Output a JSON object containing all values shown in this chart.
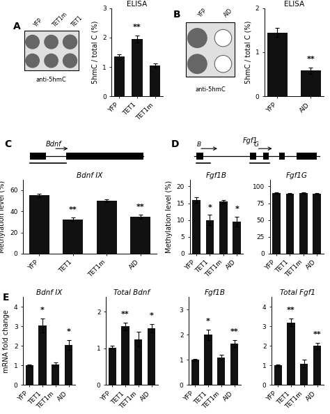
{
  "panel_A": {
    "bars": {
      "YFP": 1.35,
      "TET1": 1.95,
      "TET1m": 1.05
    },
    "errors": {
      "YFP": 0.08,
      "TET1": 0.12,
      "TET1m": 0.07
    },
    "sig": {
      "TET1": "**"
    },
    "ylabel": "5hmC / total C (%)",
    "ylim": [
      0,
      3
    ],
    "yticks": [
      0,
      1,
      2,
      3
    ],
    "title": "ELISA"
  },
  "panel_B": {
    "bars": {
      "YFP": 1.45,
      "AID": 0.58
    },
    "errors": {
      "YFP": 0.1,
      "AID": 0.07
    },
    "sig": {
      "AID": "**"
    },
    "ylabel": "5hmC / total C (%)",
    "ylim": [
      0,
      2
    ],
    "yticks": [
      0,
      1,
      2
    ],
    "title": "ELISA"
  },
  "panel_C": {
    "bars": {
      "YFP": 55,
      "TET1": 32,
      "TET1m": 50,
      "AID": 35
    },
    "errors": {
      "YFP": 1.5,
      "TET1": 2,
      "TET1m": 1.5,
      "AID": 2
    },
    "sig": {
      "TET1": "**",
      "AID": "**"
    },
    "ylabel": "Methylation level (%)",
    "ylim": [
      0,
      70
    ],
    "yticks": [
      0,
      20,
      40,
      60
    ],
    "title": "Bdnf IX"
  },
  "panel_D1": {
    "bars": {
      "YFP": 16,
      "TET1": 10,
      "TET1m": 15.5,
      "AID": 9.5
    },
    "errors": {
      "YFP": 0.8,
      "TET1": 1.5,
      "TET1m": 0.5,
      "AID": 1.5
    },
    "sig": {
      "TET1": "*",
      "AID": "*"
    },
    "ylabel": "Methylation level (%)",
    "ylim": [
      0,
      22
    ],
    "yticks": [
      0,
      5,
      10,
      15,
      20
    ],
    "title": "Fgf1B"
  },
  "panel_D2": {
    "bars": {
      "YFP": 90,
      "TET1": 89,
      "TET1m": 90,
      "AID": 89
    },
    "errors": {
      "YFP": 1,
      "TET1": 1,
      "TET1m": 1,
      "AID": 1
    },
    "sig": {},
    "ylabel": "",
    "ylim": [
      0,
      110
    ],
    "yticks": [
      0,
      25,
      50,
      75,
      100
    ],
    "title": "Fgf1G"
  },
  "panel_E1": {
    "bars": {
      "YFP": 1.0,
      "TET1": 3.05,
      "TET1m": 1.05,
      "AID": 2.05
    },
    "errors": {
      "YFP": 0.05,
      "TET1": 0.35,
      "TET1m": 0.1,
      "AID": 0.25
    },
    "sig": {
      "TET1": "*",
      "AID": "*"
    },
    "ylabel": "mRNA fold change",
    "ylim": [
      0,
      4.5
    ],
    "yticks": [
      0,
      1,
      2,
      3,
      4
    ],
    "title": "Bdnf IX"
  },
  "panel_E2": {
    "bars": {
      "YFP": 1.02,
      "TET1": 1.6,
      "TET1m": 1.25,
      "AID": 1.55
    },
    "errors": {
      "YFP": 0.05,
      "TET1": 0.1,
      "TET1m": 0.2,
      "AID": 0.12
    },
    "sig": {
      "TET1": "**",
      "AID": "*"
    },
    "ylabel": "",
    "ylim": [
      0,
      2.4
    ],
    "yticks": [
      0,
      1,
      2
    ],
    "title": "Total Bdnf"
  },
  "panel_E3": {
    "bars": {
      "YFP": 1.0,
      "TET1": 2.0,
      "TET1m": 1.1,
      "AID": 1.65
    },
    "errors": {
      "YFP": 0.05,
      "TET1": 0.2,
      "TET1m": 0.1,
      "AID": 0.15
    },
    "sig": {
      "TET1": "*",
      "AID": "**"
    },
    "ylabel": "",
    "ylim": [
      0,
      3.5
    ],
    "yticks": [
      0,
      1,
      2,
      3
    ],
    "title": "Fgf1B"
  },
  "panel_E4": {
    "bars": {
      "YFP": 1.0,
      "TET1": 3.2,
      "TET1m": 1.1,
      "AID": 2.0
    },
    "errors": {
      "YFP": 0.05,
      "TET1": 0.2,
      "TET1m": 0.2,
      "AID": 0.15
    },
    "sig": {
      "TET1": "**",
      "AID": "**"
    },
    "ylabel": "",
    "ylim": [
      0,
      4.5
    ],
    "yticks": [
      0,
      1,
      2,
      3,
      4
    ],
    "title": "Total Fgf1"
  },
  "dot_a_labels": [
    "YFP",
    "TET1m",
    "TET1"
  ],
  "dot_b_labels": [
    "YFP",
    "AID"
  ],
  "bar_color": "#111111",
  "bar_width": 0.6,
  "tick_fontsize": 6.5,
  "label_fontsize": 7,
  "title_fontsize": 7.5,
  "sig_fontsize": 8,
  "panel_label_fontsize": 10
}
